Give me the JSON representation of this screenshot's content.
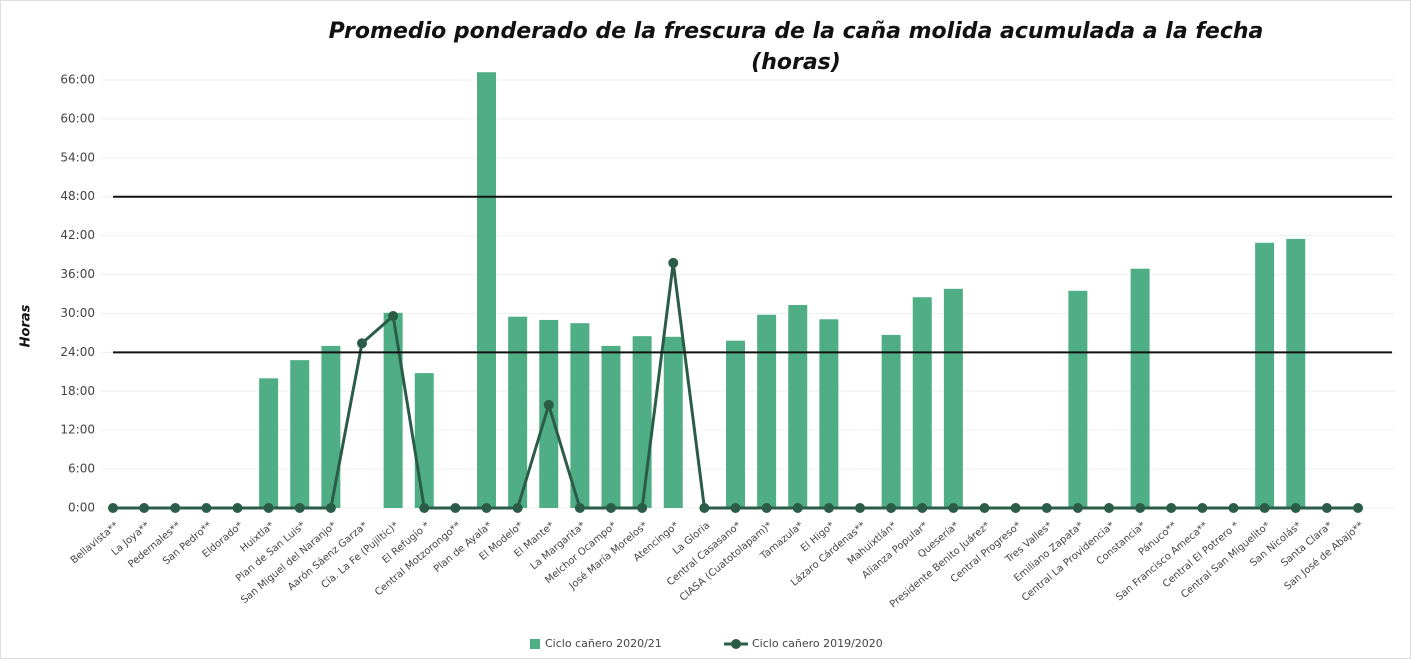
{
  "chart_data": {
    "type": "bar_line",
    "title": "Promedio ponderado de la frescura de la caña molida acumulada a la fecha",
    "subtitle": "(horas)",
    "y_label": "Horas",
    "categories": [
      "Bellavista**",
      "La Joya**",
      "Pedernales**",
      "San Pedro**",
      "Eldorado*",
      "Huixtla*",
      "Plan de San Luis*",
      "San Miguel del Naranjo*",
      "Aarón Sáenz Garza*",
      "Cía. La Fe (Pujiltic)*",
      "El Refugio *",
      "Central Motzorongo**",
      "Plan de Ayala*",
      "El Modelo*",
      "El Mante*",
      "La Margarita*",
      "Melchor Ocampo*",
      "José María Morelos*",
      "Atencingo*",
      "La Gloria",
      "Central Casasano*",
      "CIASA (Cuatotolapam)*",
      "Tamazula*",
      "El Higo*",
      "Lázaro Cárdenas**",
      "Mahuixtlán*",
      "Alianza Popular*",
      "Quesería*",
      "Presidente Benito Juárez*",
      "Central Progreso*",
      "Tres Valles*",
      "Emiliano Zapata*",
      "Central La Providencia*",
      "Constancia*",
      "Pánuco**",
      "San Francisco Ameca**",
      "Central El Potrero *",
      "Central San Miguelito*",
      "San Nicolás*",
      "Santa Clara*",
      "San José de Abajo**"
    ],
    "series": [
      {
        "name": "Ciclo cañero 2020/21",
        "kind": "bar",
        "color": "#4fae86",
        "values": [
          null,
          null,
          null,
          null,
          null,
          20.0,
          22.8,
          25.0,
          null,
          30.1,
          20.8,
          null,
          67.2,
          29.5,
          29.0,
          28.5,
          25.0,
          26.5,
          26.4,
          null,
          25.8,
          29.8,
          31.3,
          29.1,
          null,
          26.7,
          32.5,
          33.8,
          null,
          null,
          null,
          33.5,
          null,
          36.9,
          null,
          null,
          null,
          40.9,
          41.5,
          null,
          null
        ]
      },
      {
        "name": "Ciclo cañero 2019/2020",
        "kind": "line",
        "color": "#2b5c48",
        "values": [
          0,
          0,
          0,
          0,
          0,
          0,
          0,
          0,
          25.4,
          29.6,
          0,
          0,
          0,
          0,
          15.9,
          0,
          0,
          0,
          37.8,
          0,
          0,
          0,
          0,
          0,
          0,
          0,
          0,
          0,
          0,
          0,
          0,
          0,
          0,
          0,
          0,
          0,
          0,
          0,
          0,
          0,
          0
        ]
      }
    ],
    "reference_lines": [
      48,
      24
    ],
    "ylim": [
      0,
      66
    ],
    "yticks": [
      {
        "value": 0,
        "label": "0:00"
      },
      {
        "value": 6,
        "label": "6:00"
      },
      {
        "value": 12,
        "label": "12:00"
      },
      {
        "value": 18,
        "label": "18:00"
      },
      {
        "value": 24,
        "label": "24:00"
      },
      {
        "value": 30,
        "label": "30:00"
      },
      {
        "value": 36,
        "label": "36:00"
      },
      {
        "value": 42,
        "label": "42:00"
      },
      {
        "value": 48,
        "label": "48:00"
      },
      {
        "value": 54,
        "label": "54:00"
      },
      {
        "value": 60,
        "label": "60:00"
      },
      {
        "value": 66,
        "label": "66:00"
      }
    ],
    "grid": true,
    "legend": "bottom"
  }
}
